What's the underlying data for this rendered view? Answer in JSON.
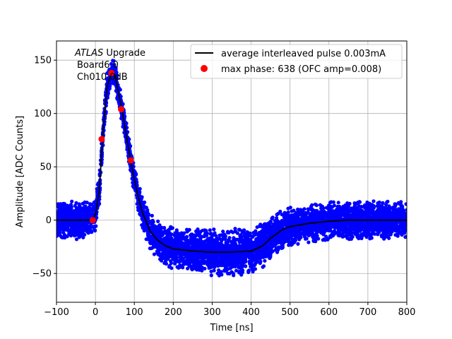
{
  "chart_data": {
    "type": "scatter",
    "xlabel": "Time [ns]",
    "ylabel": "Amplitude [ADC Counts]",
    "xlim": [
      -100,
      800
    ],
    "ylim": [
      -77,
      168
    ],
    "xticks": [
      -100,
      0,
      100,
      200,
      300,
      400,
      500,
      600,
      700,
      800
    ],
    "xtick_labels": [
      "−100",
      "0",
      "100",
      "200",
      "300",
      "400",
      "500",
      "600",
      "700",
      "800"
    ],
    "yticks": [
      -50,
      0,
      50,
      100,
      150
    ],
    "ytick_labels": [
      "−50",
      "0",
      "50",
      "100",
      "150"
    ],
    "grid": true,
    "legend_position": "top-right",
    "annotation": {
      "italic": "ATLAS",
      "line1_rest": " Upgrade",
      "line2": "Board6 0",
      "line3": "Ch010 0dB"
    },
    "colors": {
      "samples": "#0000ff",
      "average": "#000000",
      "max_phase": "#ff0000",
      "grid": "#b0b0b0"
    },
    "series": [
      {
        "name": "average interleaved pulse 0.003mA",
        "type": "line",
        "x": [
          -100,
          -50,
          -10,
          0,
          10,
          20,
          30,
          40,
          45,
          50,
          60,
          70,
          80,
          90,
          100,
          110,
          120,
          140,
          160,
          180,
          200,
          250,
          300,
          350,
          400,
          430,
          450,
          480,
          500,
          550,
          600,
          650,
          700,
          750,
          800
        ],
        "y": [
          0,
          0,
          0,
          5,
          28,
          85,
          125,
          137,
          139,
          136,
          118,
          100,
          78,
          57,
          38,
          22,
          8,
          -10,
          -19,
          -24,
          -27,
          -29,
          -30,
          -30,
          -29,
          -24,
          -17,
          -9,
          -6,
          -3,
          -1,
          0,
          0,
          0,
          0
        ]
      },
      {
        "name": "max phase: 638 (OFC amp=0.008)",
        "type": "scatter",
        "x": [
          -7,
          16,
          41,
          66,
          91
        ],
        "y": [
          0,
          76,
          138,
          104,
          56
        ]
      },
      {
        "name": "",
        "type": "scatter-band",
        "spread": [
          [
            -100,
            18
          ],
          [
            -10,
            18
          ],
          [
            0,
            16
          ],
          [
            20,
            14
          ],
          [
            40,
            12
          ],
          [
            60,
            12
          ],
          [
            100,
            14
          ],
          [
            150,
            18
          ],
          [
            200,
            20
          ],
          [
            300,
            22
          ],
          [
            400,
            22
          ],
          [
            450,
            20
          ],
          [
            500,
            18
          ],
          [
            600,
            18
          ],
          [
            700,
            18
          ],
          [
            800,
            18
          ]
        ]
      }
    ]
  }
}
